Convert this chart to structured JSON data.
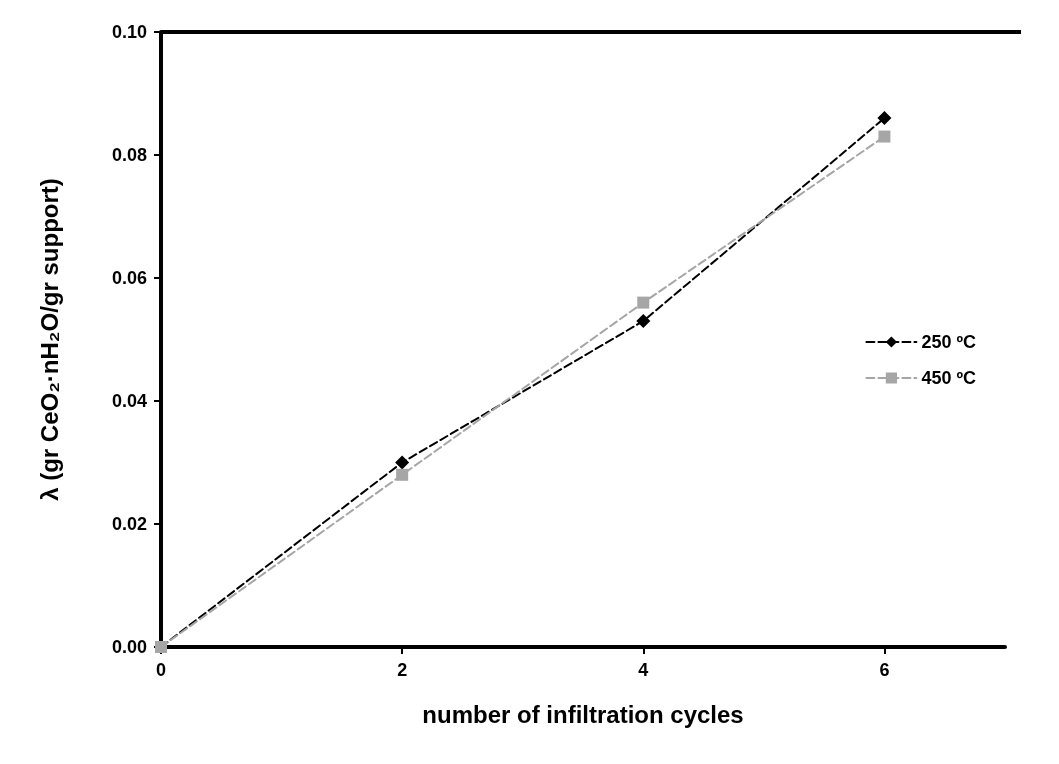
{
  "chart_data": {
    "type": "line",
    "xlabel": "number of infiltration cycles",
    "ylabel": "λ (gr CeO₂·nH₂O/gr support)",
    "x": [
      0,
      2,
      4,
      6
    ],
    "series": [
      {
        "name": "250 ºC",
        "color": "#000000",
        "marker": "diamond",
        "values": [
          0,
          0.03,
          0.053,
          0.086
        ]
      },
      {
        "name": "450 ºC",
        "color": "#a6a6a6",
        "marker": "square",
        "values": [
          0,
          0.028,
          0.056,
          0.083
        ]
      }
    ],
    "xlim": [
      0,
      7
    ],
    "xticks": [
      0,
      2,
      4,
      6
    ],
    "ylim": [
      0,
      0.1
    ],
    "yticks": [
      {
        "value": 0,
        "label": "0.00"
      },
      {
        "value": 0.02,
        "label": "0.02"
      },
      {
        "value": 0.04,
        "label": "0.04"
      },
      {
        "value": 0.06,
        "label": "0.06"
      },
      {
        "value": 0.08,
        "label": "0.08"
      },
      {
        "value": 0.1,
        "label": "0.10"
      }
    ],
    "grid": false,
    "legend": "right",
    "line_style": "dashed"
  }
}
